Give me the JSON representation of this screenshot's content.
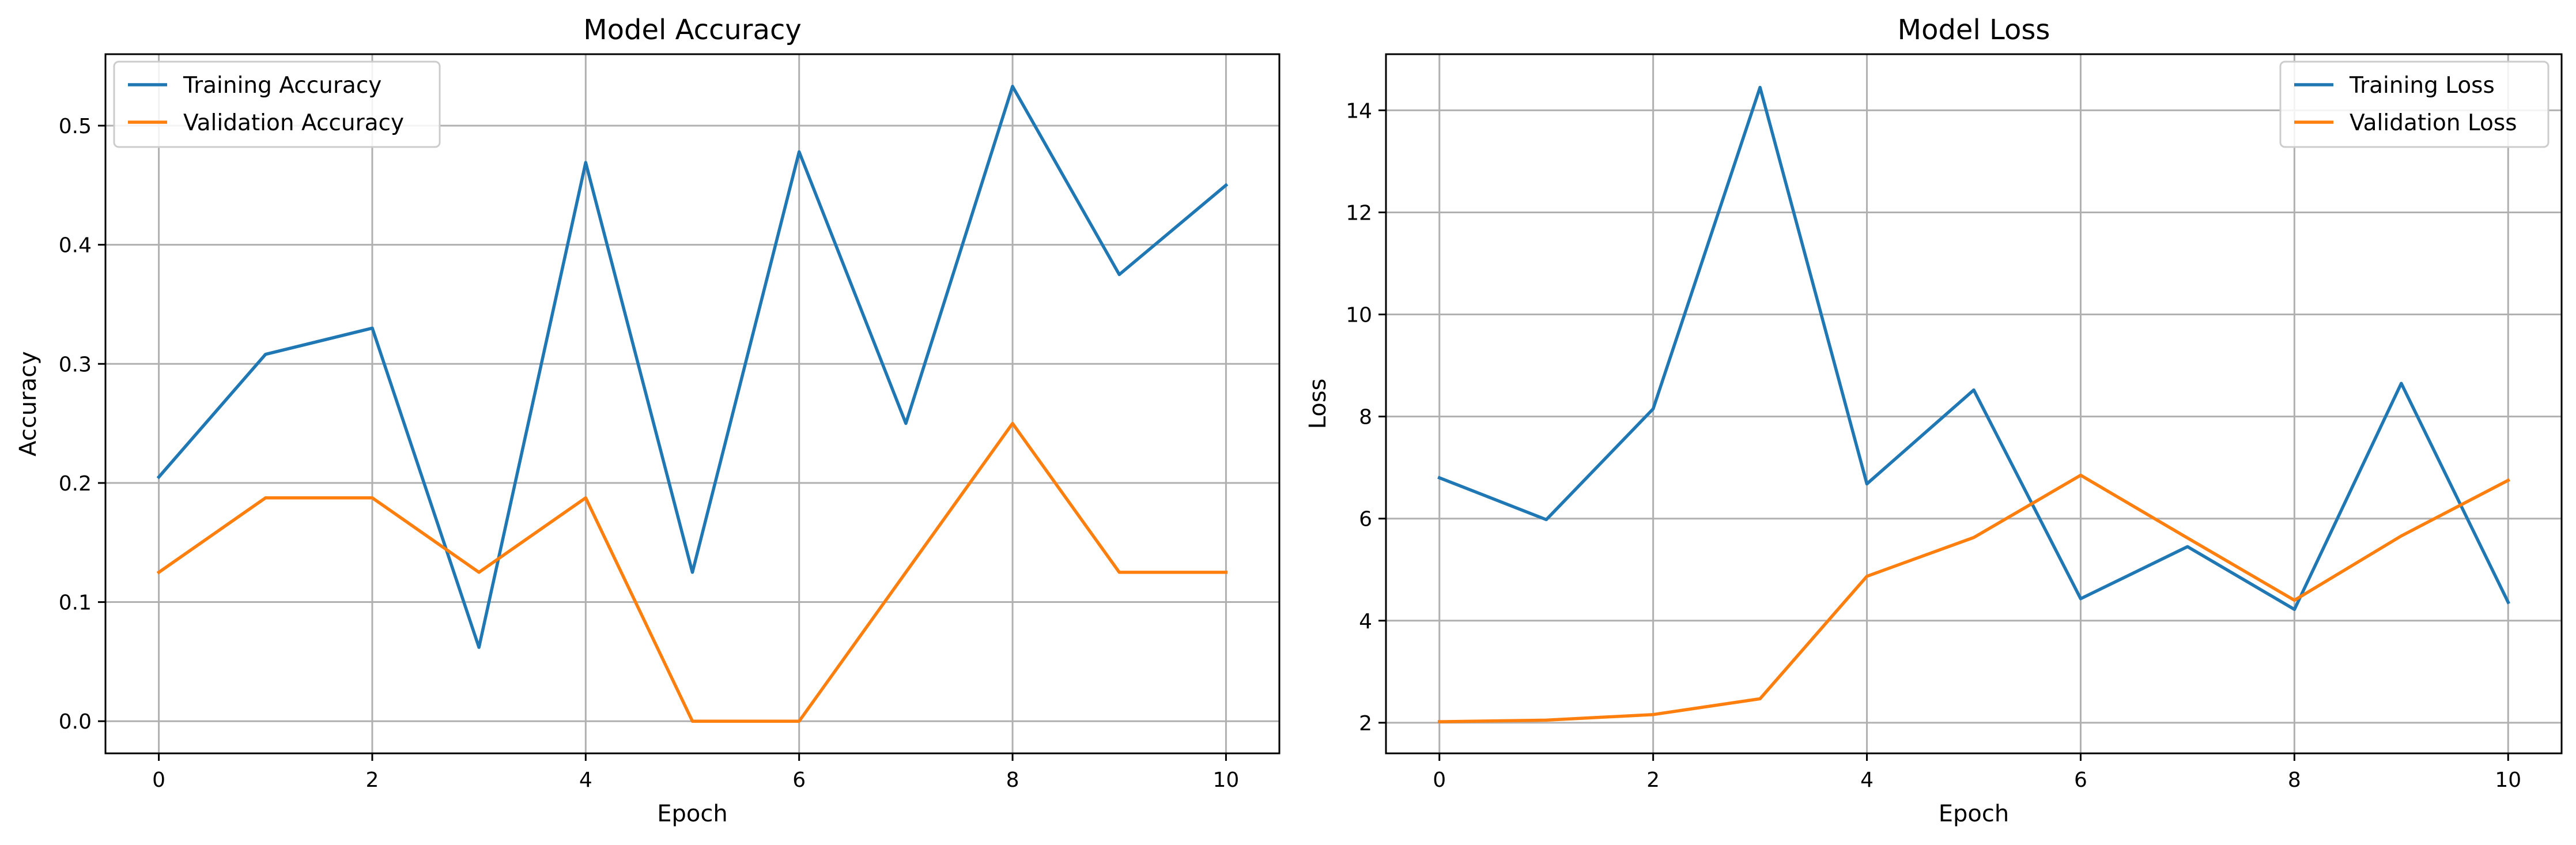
{
  "chart_data": [
    {
      "type": "line",
      "title": "Model Accuracy",
      "xlabel": "Epoch",
      "ylabel": "Accuracy",
      "x": [
        0,
        1,
        2,
        3,
        4,
        5,
        6,
        7,
        8,
        9,
        10
      ],
      "xlim": [
        -0.5,
        10.5
      ],
      "ylim": [
        -0.027,
        0.56
      ],
      "xticks": [
        "0",
        "2",
        "4",
        "6",
        "8",
        "10"
      ],
      "yticks": [
        "0.0",
        "0.1",
        "0.2",
        "0.3",
        "0.4",
        "0.5"
      ],
      "grid": true,
      "legend_position": "top-left",
      "series": [
        {
          "name": "Training Accuracy",
          "color": "#1f77b4",
          "values": [
            0.205,
            0.308,
            0.33,
            0.062,
            0.469,
            0.125,
            0.478,
            0.25,
            0.533,
            0.375,
            0.45
          ]
        },
        {
          "name": "Validation Accuracy",
          "color": "#ff7f0e",
          "values": [
            0.125,
            0.1875,
            0.1875,
            0.125,
            0.1875,
            0.0,
            0.0,
            0.125,
            0.25,
            0.125,
            0.125
          ]
        }
      ]
    },
    {
      "type": "line",
      "title": "Model Loss",
      "xlabel": "Epoch",
      "ylabel": "Loss",
      "x": [
        0,
        1,
        2,
        3,
        4,
        5,
        6,
        7,
        8,
        9,
        10
      ],
      "xlim": [
        -0.5,
        10.5
      ],
      "ylim": [
        1.4,
        15.1
      ],
      "xticks": [
        "0",
        "2",
        "4",
        "6",
        "8",
        "10"
      ],
      "yticks": [
        "2",
        "4",
        "6",
        "8",
        "10",
        "12",
        "14"
      ],
      "grid": true,
      "legend_position": "top-right",
      "series": [
        {
          "name": "Training Loss",
          "color": "#1f77b4",
          "values": [
            6.8,
            5.98,
            8.15,
            14.45,
            6.68,
            8.52,
            4.43,
            5.45,
            4.22,
            8.65,
            4.36
          ]
        },
        {
          "name": "Validation Loss",
          "color": "#ff7f0e",
          "values": [
            2.02,
            2.05,
            2.16,
            2.47,
            4.87,
            5.63,
            6.85,
            5.62,
            4.4,
            5.66,
            6.75
          ]
        }
      ]
    }
  ]
}
